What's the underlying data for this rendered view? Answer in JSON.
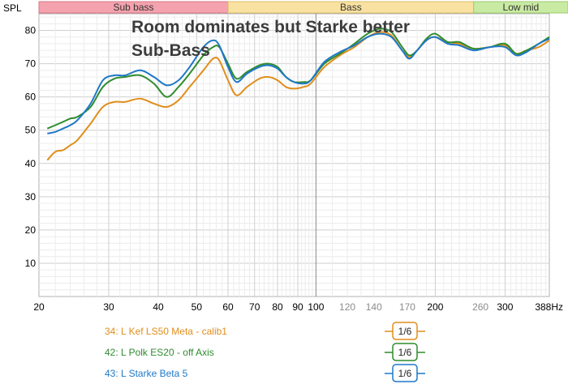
{
  "chart_data": {
    "type": "line",
    "title_lines": [
      "Room dominates but Starke better",
      "Sub-Bass"
    ],
    "ylabel": "SPL",
    "xlabel": "Hz",
    "xscale": "log",
    "xlim": [
      20,
      388
    ],
    "ylim": [
      0,
      85
    ],
    "x_ticks": [
      {
        "v": 20,
        "label": "20",
        "major": true
      },
      {
        "v": 30,
        "label": "30",
        "major": true
      },
      {
        "v": 40,
        "label": "40",
        "major": true
      },
      {
        "v": 50,
        "label": "50",
        "major": true
      },
      {
        "v": 60,
        "label": "60",
        "major": true
      },
      {
        "v": 70,
        "label": "70",
        "major": true
      },
      {
        "v": 80,
        "label": "80",
        "major": true
      },
      {
        "v": 90,
        "label": "90",
        "major": true
      },
      {
        "v": 100,
        "label": "100",
        "major": true
      },
      {
        "v": 120,
        "label": "120",
        "major": false
      },
      {
        "v": 140,
        "label": "140",
        "major": false
      },
      {
        "v": 170,
        "label": "170",
        "major": false
      },
      {
        "v": 200,
        "label": "200",
        "major": true
      },
      {
        "v": 260,
        "label": "260",
        "major": false
      },
      {
        "v": 300,
        "label": "300",
        "major": true
      },
      {
        "v": 388,
        "label": "388Hz",
        "major": true
      }
    ],
    "y_ticks": [
      10,
      20,
      30,
      40,
      50,
      60,
      70,
      80
    ],
    "bands": [
      {
        "label": "Sub bass",
        "from": 20,
        "to": 60,
        "color": "#f4a3ae",
        "border": "#d77a88"
      },
      {
        "label": "Bass",
        "from": 60,
        "to": 250,
        "color": "#f9e2a1",
        "border": "#d9bd6a"
      },
      {
        "label": "Low mid",
        "from": 250,
        "to": 500,
        "color": "#c9eaa2",
        "border": "#9ccb6c"
      }
    ],
    "series": [
      {
        "name": "34: L Kef LS50 Meta - calib1",
        "color": "#e08e1b",
        "smoothing": "1/6",
        "points": [
          [
            21,
            41
          ],
          [
            22,
            43.5
          ],
          [
            23,
            44
          ],
          [
            24,
            45.5
          ],
          [
            25,
            47
          ],
          [
            27,
            52
          ],
          [
            29,
            57
          ],
          [
            31,
            58.5
          ],
          [
            33,
            58.5
          ],
          [
            36,
            59.5
          ],
          [
            39,
            58
          ],
          [
            42,
            57
          ],
          [
            45,
            59
          ],
          [
            48,
            63
          ],
          [
            52,
            68
          ],
          [
            55,
            71.5
          ],
          [
            57,
            71
          ],
          [
            60,
            65
          ],
          [
            63,
            60.5
          ],
          [
            67,
            63
          ],
          [
            72,
            65.5
          ],
          [
            76,
            66
          ],
          [
            80,
            65
          ],
          [
            84,
            63
          ],
          [
            88,
            62.5
          ],
          [
            93,
            63
          ],
          [
            97,
            64
          ],
          [
            105,
            69
          ],
          [
            115,
            72.5
          ],
          [
            125,
            75
          ],
          [
            135,
            78
          ],
          [
            145,
            79.5
          ],
          [
            155,
            78.5
          ],
          [
            165,
            74
          ],
          [
            172,
            72
          ],
          [
            180,
            74
          ],
          [
            190,
            77
          ],
          [
            200,
            78
          ],
          [
            215,
            76.5
          ],
          [
            230,
            76
          ],
          [
            250,
            74.5
          ],
          [
            275,
            75
          ],
          [
            300,
            75.5
          ],
          [
            320,
            73
          ],
          [
            340,
            74
          ],
          [
            365,
            75
          ],
          [
            388,
            77
          ]
        ]
      },
      {
        "name": "42: L Polk ES20 - off Axis",
        "color": "#2f8c2f",
        "smoothing": "1/6",
        "points": [
          [
            21,
            50.5
          ],
          [
            22,
            51.5
          ],
          [
            23,
            52.5
          ],
          [
            24,
            53.5
          ],
          [
            25,
            54
          ],
          [
            27,
            57
          ],
          [
            29,
            63
          ],
          [
            31,
            65.5
          ],
          [
            33,
            66
          ],
          [
            36,
            66.5
          ],
          [
            39,
            64
          ],
          [
            42,
            60
          ],
          [
            45,
            63
          ],
          [
            48,
            67
          ],
          [
            52,
            72.5
          ],
          [
            55,
            75
          ],
          [
            57,
            75
          ],
          [
            60,
            70
          ],
          [
            63,
            65.5
          ],
          [
            67,
            67.5
          ],
          [
            72,
            69.5
          ],
          [
            76,
            70
          ],
          [
            80,
            69
          ],
          [
            84,
            66
          ],
          [
            88,
            64.5
          ],
          [
            93,
            64.5
          ],
          [
            97,
            65
          ],
          [
            105,
            70
          ],
          [
            115,
            73
          ],
          [
            125,
            76
          ],
          [
            135,
            79
          ],
          [
            145,
            80.5
          ],
          [
            155,
            79.5
          ],
          [
            165,
            75
          ],
          [
            172,
            72.5
          ],
          [
            180,
            74
          ],
          [
            190,
            77.5
          ],
          [
            200,
            79
          ],
          [
            215,
            76.5
          ],
          [
            230,
            76.5
          ],
          [
            250,
            74.5
          ],
          [
            275,
            75
          ],
          [
            300,
            76
          ],
          [
            320,
            73
          ],
          [
            340,
            74
          ],
          [
            365,
            76
          ],
          [
            388,
            78
          ]
        ]
      },
      {
        "name": "43: L Starke Beta 5",
        "color": "#1e78c8",
        "smoothing": "1/6",
        "points": [
          [
            21,
            49
          ],
          [
            22,
            49.5
          ],
          [
            23,
            50.5
          ],
          [
            24,
            51.5
          ],
          [
            25,
            53
          ],
          [
            27,
            58
          ],
          [
            29,
            65
          ],
          [
            31,
            66.5
          ],
          [
            33,
            66.5
          ],
          [
            36,
            68
          ],
          [
            39,
            66
          ],
          [
            42,
            63.5
          ],
          [
            45,
            65
          ],
          [
            48,
            69
          ],
          [
            52,
            75
          ],
          [
            55,
            77
          ],
          [
            57,
            75.5
          ],
          [
            60,
            69
          ],
          [
            63,
            64.5
          ],
          [
            67,
            67
          ],
          [
            72,
            69
          ],
          [
            76,
            69.5
          ],
          [
            80,
            68.5
          ],
          [
            84,
            66
          ],
          [
            88,
            64.5
          ],
          [
            93,
            64
          ],
          [
            97,
            65
          ],
          [
            105,
            70.5
          ],
          [
            115,
            73.5
          ],
          [
            125,
            75.5
          ],
          [
            135,
            78
          ],
          [
            145,
            79
          ],
          [
            155,
            78
          ],
          [
            165,
            74
          ],
          [
            172,
            71.5
          ],
          [
            180,
            74
          ],
          [
            190,
            77
          ],
          [
            200,
            78
          ],
          [
            215,
            76
          ],
          [
            230,
            75.5
          ],
          [
            250,
            74
          ],
          [
            275,
            75
          ],
          [
            300,
            75
          ],
          [
            320,
            72.5
          ],
          [
            340,
            73.5
          ],
          [
            365,
            76
          ],
          [
            388,
            77.5
          ]
        ]
      }
    ]
  }
}
